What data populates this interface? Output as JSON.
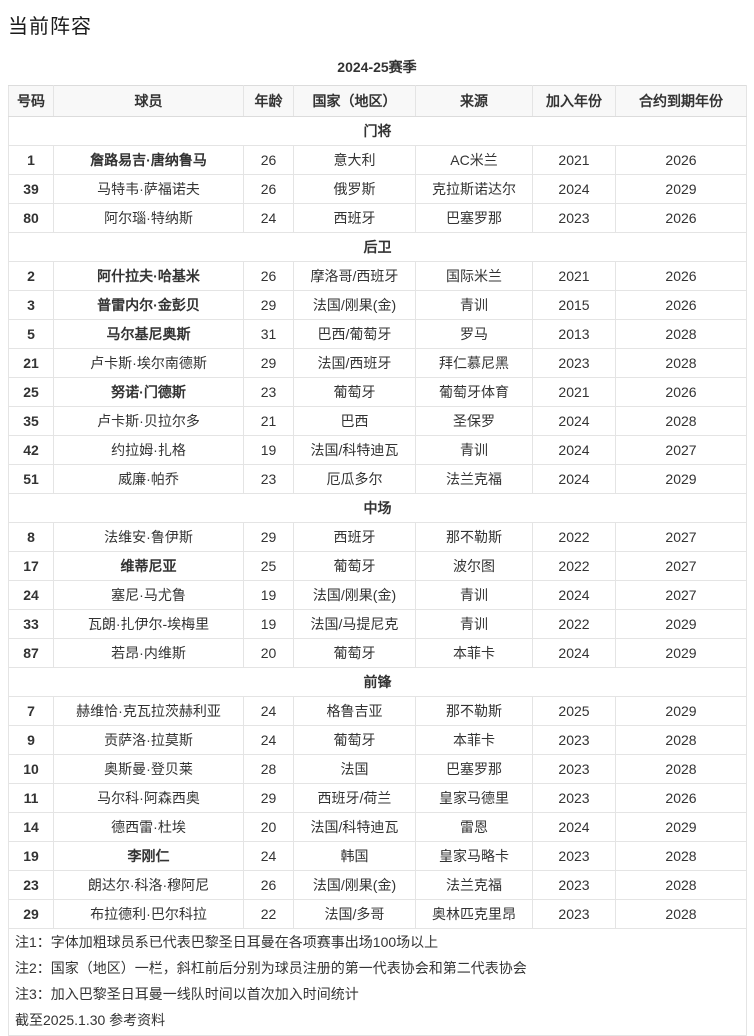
{
  "page_title": "当前阵容",
  "table": {
    "caption": "2024-25赛季",
    "columns": [
      "号码",
      "球员",
      "年龄",
      "国家（地区）",
      "来源",
      "加入年份",
      "合约到期年份"
    ],
    "sections": [
      {
        "label": "门将",
        "players": [
          {
            "no": "1",
            "name": "詹路易吉·唐纳鲁马",
            "bold": true,
            "age": "26",
            "nation": "意大利",
            "from": "AC米兰",
            "joined": "2021",
            "expires": "2026"
          },
          {
            "no": "39",
            "name": "马特韦·萨福诺夫",
            "bold": false,
            "age": "26",
            "nation": "俄罗斯",
            "from": "克拉斯诺达尔",
            "joined": "2024",
            "expires": "2029"
          },
          {
            "no": "80",
            "name": "阿尔瑙·特纳斯",
            "bold": false,
            "age": "24",
            "nation": "西班牙",
            "from": "巴塞罗那",
            "joined": "2023",
            "expires": "2026"
          }
        ]
      },
      {
        "label": "后卫",
        "players": [
          {
            "no": "2",
            "name": "阿什拉夫·哈基米",
            "bold": true,
            "age": "26",
            "nation": "摩洛哥/西班牙",
            "from": "国际米兰",
            "joined": "2021",
            "expires": "2026"
          },
          {
            "no": "3",
            "name": "普雷内尔·金彭贝",
            "bold": true,
            "age": "29",
            "nation": "法国/刚果(金)",
            "from": "青训",
            "joined": "2015",
            "expires": "2026"
          },
          {
            "no": "5",
            "name": "马尔基尼奥斯",
            "bold": true,
            "age": "31",
            "nation": "巴西/葡萄牙",
            "from": "罗马",
            "joined": "2013",
            "expires": "2028"
          },
          {
            "no": "21",
            "name": "卢卡斯·埃尔南德斯",
            "bold": false,
            "age": "29",
            "nation": "法国/西班牙",
            "from": "拜仁慕尼黑",
            "joined": "2023",
            "expires": "2028"
          },
          {
            "no": "25",
            "name": "努诺·门德斯",
            "bold": true,
            "age": "23",
            "nation": "葡萄牙",
            "from": "葡萄牙体育",
            "joined": "2021",
            "expires": "2026"
          },
          {
            "no": "35",
            "name": "卢卡斯·贝拉尔多",
            "bold": false,
            "age": "21",
            "nation": "巴西",
            "from": "圣保罗",
            "joined": "2024",
            "expires": "2028"
          },
          {
            "no": "42",
            "name": "约拉姆·扎格",
            "bold": false,
            "age": "19",
            "nation": "法国/科特迪瓦",
            "from": "青训",
            "joined": "2024",
            "expires": "2027"
          },
          {
            "no": "51",
            "name": "威廉·帕乔",
            "bold": false,
            "age": "23",
            "nation": "厄瓜多尔",
            "from": "法兰克福",
            "joined": "2024",
            "expires": "2029"
          }
        ]
      },
      {
        "label": "中场",
        "players": [
          {
            "no": "8",
            "name": "法维安·鲁伊斯",
            "bold": false,
            "age": "29",
            "nation": "西班牙",
            "from": "那不勒斯",
            "joined": "2022",
            "expires": "2027"
          },
          {
            "no": "17",
            "name": "维蒂尼亚",
            "bold": true,
            "age": "25",
            "nation": "葡萄牙",
            "from": "波尔图",
            "joined": "2022",
            "expires": "2027"
          },
          {
            "no": "24",
            "name": "塞尼·马尤鲁",
            "bold": false,
            "age": "19",
            "nation": "法国/刚果(金)",
            "from": "青训",
            "joined": "2024",
            "expires": "2027"
          },
          {
            "no": "33",
            "name": "瓦朗·扎伊尔-埃梅里",
            "bold": false,
            "age": "19",
            "nation": "法国/马提尼克",
            "from": "青训",
            "joined": "2022",
            "expires": "2029"
          },
          {
            "no": "87",
            "name": "若昂·内维斯",
            "bold": false,
            "age": "20",
            "nation": "葡萄牙",
            "from": "本菲卡",
            "joined": "2024",
            "expires": "2029"
          }
        ]
      },
      {
        "label": "前锋",
        "players": [
          {
            "no": "7",
            "name": "赫维恰·克瓦拉茨赫利亚",
            "bold": false,
            "age": "24",
            "nation": "格鲁吉亚",
            "from": "那不勒斯",
            "joined": "2025",
            "expires": "2029"
          },
          {
            "no": "9",
            "name": "贡萨洛·拉莫斯",
            "bold": false,
            "age": "24",
            "nation": "葡萄牙",
            "from": "本菲卡",
            "joined": "2023",
            "expires": "2028"
          },
          {
            "no": "10",
            "name": "奥斯曼·登贝莱",
            "bold": false,
            "age": "28",
            "nation": "法国",
            "from": "巴塞罗那",
            "joined": "2023",
            "expires": "2028"
          },
          {
            "no": "11",
            "name": "马尔科·阿森西奥",
            "bold": false,
            "age": "29",
            "nation": "西班牙/荷兰",
            "from": "皇家马德里",
            "joined": "2023",
            "expires": "2026"
          },
          {
            "no": "14",
            "name": "德西雷·杜埃",
            "bold": false,
            "age": "20",
            "nation": "法国/科特迪瓦",
            "from": "雷恩",
            "joined": "2024",
            "expires": "2029"
          },
          {
            "no": "19",
            "name": "李刚仁",
            "bold": true,
            "age": "24",
            "nation": "韩国",
            "from": "皇家马略卡",
            "joined": "2023",
            "expires": "2028"
          },
          {
            "no": "23",
            "name": "朗达尔·科洛·穆阿尼",
            "bold": false,
            "age": "26",
            "nation": "法国/刚果(金)",
            "from": "法兰克福",
            "joined": "2023",
            "expires": "2028"
          },
          {
            "no": "29",
            "name": "布拉德利·巴尔科拉",
            "bold": false,
            "age": "22",
            "nation": "法国/多哥",
            "from": "奥林匹克里昂",
            "joined": "2023",
            "expires": "2028"
          }
        ]
      }
    ],
    "notes": [
      "注1：字体加粗球员系已代表巴黎圣日耳曼在各项赛事出场100场以上",
      "注2：国家（地区）一栏，斜杠前后分别为球员注册的第一代表协会和第二代表协会",
      "注3：加入巴黎圣日耳曼一线队时间以首次加入时间统计",
      "截至2025.1.30 参考资料"
    ]
  }
}
